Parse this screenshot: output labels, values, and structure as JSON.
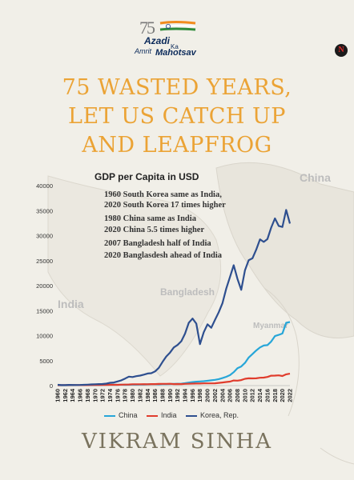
{
  "cover": {
    "emblem": {
      "number": "75",
      "line1": "Azadi",
      "ka": "Ka",
      "amrit": "Amrit",
      "mahotsav": "Mahotsav"
    },
    "publisher_logo": "N",
    "title_lines": [
      "75 WASTED YEARS,",
      "LET US CATCH UP",
      "AND LEAPFROG"
    ],
    "author": "VIKRAM SINHA",
    "map_labels": {
      "china": "China",
      "india": "India",
      "bangladesh": "Bangladesh",
      "myanmar": "Myanmar"
    },
    "colors": {
      "title": "#eba335",
      "author": "#7a735e",
      "background": "#f1efe8"
    }
  },
  "annotations": [
    [
      "1960 South Korea same as India,",
      "2020 South Korea 17 times higher"
    ],
    [
      "1980 China same as India",
      "2020 China 5.5 times higher"
    ],
    [
      "2007 Bangladesh half of India",
      "2020 Banglasdesh ahead of India"
    ]
  ],
  "chart_data": {
    "type": "line",
    "title": "GDP per Capita in USD",
    "xlabel": "",
    "ylabel": "",
    "ylim": [
      0,
      40000
    ],
    "yticks": [
      0,
      5000,
      10000,
      15000,
      20000,
      25000,
      30000,
      35000,
      40000
    ],
    "xticks": [
      "1960",
      "1962",
      "1964",
      "1966",
      "1968",
      "1970",
      "1972",
      "1974",
      "1976",
      "1978",
      "1980",
      "1982",
      "1984",
      "1986",
      "1988",
      "1990",
      "1992",
      "1994",
      "1996",
      "1998",
      "2000",
      "2002",
      "2004",
      "2006",
      "2008",
      "2010",
      "2012",
      "2014",
      "2016",
      "2018",
      "2020",
      "2022"
    ],
    "x": [
      1960,
      1961,
      1962,
      1963,
      1964,
      1965,
      1966,
      1967,
      1968,
      1969,
      1970,
      1971,
      1972,
      1973,
      1974,
      1975,
      1976,
      1977,
      1978,
      1979,
      1980,
      1981,
      1982,
      1983,
      1984,
      1985,
      1986,
      1987,
      1988,
      1989,
      1990,
      1991,
      1992,
      1993,
      1994,
      1995,
      1996,
      1997,
      1998,
      1999,
      2000,
      2001,
      2002,
      2003,
      2004,
      2005,
      2006,
      2007,
      2008,
      2009,
      2010,
      2011,
      2012,
      2013,
      2014,
      2015,
      2016,
      2017,
      2018,
      2019,
      2020,
      2021,
      2022
    ],
    "series": [
      {
        "name": "China",
        "color": "#27a6d8",
        "values": [
          90,
          76,
          70,
          74,
          85,
          98,
          104,
          96,
          91,
          100,
          113,
          119,
          132,
          157,
          160,
          178,
          165,
          185,
          156,
          183,
          195,
          197,
          203,
          225,
          251,
          294,
          282,
          252,
          284,
          311,
          318,
          333,
          366,
          377,
          473,
          610,
          709,
          781,
          828,
          873,
          959,
          1053,
          1149,
          1289,
          1509,
          1753,
          2099,
          2694,
          3468,
          3832,
          4550,
          5614,
          6301,
          7020,
          7636,
          8016,
          8094,
          8817,
          9905,
          10144,
          10409,
          12556,
          12720
        ]
      },
      {
        "name": "India",
        "color": "#e03c2c",
        "values": [
          83,
          86,
          89,
          101,
          116,
          119,
          90,
          96,
          99,
          107,
          112,
          118,
          122,
          143,
          163,
          158,
          161,
          186,
          204,
          224,
          267,
          271,
          275,
          292,
          277,
          297,
          311,
          339,
          354,
          347,
          368,
          303,
          317,
          301,
          346,
          374,
          400,
          415,
          413,
          442,
          443,
          452,
          471,
          546,
          627,
          714,
          806,
          1028,
          999,
          1102,
          1358,
          1458,
          1444,
          1450,
          1574,
          1606,
          1733,
          1981,
          1996,
          2050,
          1913,
          2250,
          2389
        ]
      },
      {
        "name": "Korea, Rep.",
        "color": "#2e4f8f",
        "values": [
          158,
          94,
          106,
          146,
          123,
          108,
          133,
          161,
          196,
          243,
          279,
          301,
          324,
          406,
          563,
          617,
          834,
          1056,
          1405,
          1784,
          1715,
          1883,
          1993,
          2199,
          2413,
          2482,
          2835,
          3555,
          4749,
          5817,
          6610,
          7637,
          8127,
          8885,
          10385,
          12565,
          13403,
          12400,
          8282,
          10672,
          12257,
          11561,
          13165,
          14673,
          16496,
          19403,
          21744,
          24086,
          21350,
          19144,
          23087,
          25096,
          25459,
          27180,
          29250,
          28732,
          29289,
          31601,
          33447,
          31929,
          31721,
          35142,
          32423
        ]
      }
    ],
    "legend": "bottom",
    "grid": false
  }
}
